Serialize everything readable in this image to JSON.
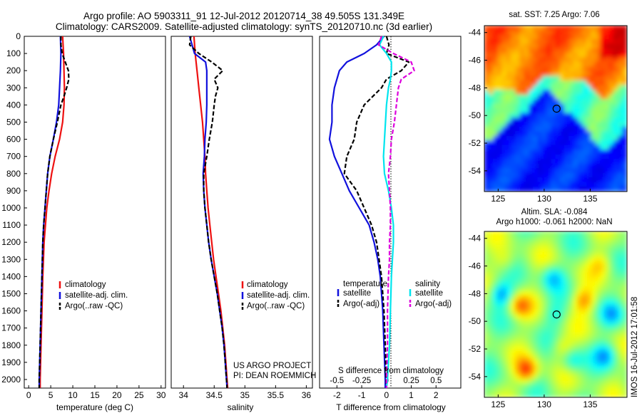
{
  "header": {
    "line1": "Argo profile: AO 5903311_91 12-Jul-2012 20120714_38 49.505S 131.349E",
    "line2": "Climatology: CARS2009. Satellite-adjusted climatology: synTS_20120710.nc (3d earlier)"
  },
  "depth_ticks": [
    0,
    100,
    200,
    300,
    400,
    500,
    600,
    700,
    800,
    900,
    1000,
    1100,
    1200,
    1300,
    1400,
    1500,
    1600,
    1700,
    1800,
    1900,
    2000
  ],
  "colors": {
    "climatology": "#ee1111",
    "satellite": "#1111dd",
    "argo": "#000000",
    "sal_sat": "#00e5ee",
    "sal_argo": "#dd00dd"
  },
  "panel_temp": {
    "xlabel": "temperature (deg C)",
    "xticks": [
      0,
      5,
      10,
      15,
      20,
      25,
      30
    ],
    "legend": [
      "climatology",
      "satellite-adj. clim.",
      "Argo(..raw -QC)"
    ]
  },
  "panel_sal": {
    "xlabel": "salinity",
    "xticks": [
      "34",
      "34.5",
      "35",
      "35.5",
      "36"
    ],
    "legend": [
      "climatology",
      "satellite-adj. clim.",
      "Argo(..raw -QC)"
    ],
    "credit1": "US ARGO PROJECT",
    "credit2": "PI: DEAN ROEMMICH"
  },
  "panel_diff": {
    "xlabel": "T difference from climatology",
    "xlabel_top": "S difference from climatology",
    "xticks": [
      "-2",
      "-1",
      "0",
      "1",
      "2"
    ],
    "xticks_top": [
      "-0.5",
      "-0.25",
      "0",
      "0.25",
      "0.5"
    ],
    "legend_t_title": "temperature",
    "legend_s_title": "salinity",
    "legend_t": [
      "satellite",
      "Argo(-adj)"
    ],
    "legend_s": [
      "satellite",
      "Argo(-adj)"
    ]
  },
  "map_sst": {
    "title": "sat. SST: 7.25 Argo: 7.06",
    "yticks": [
      "-44",
      "-46",
      "-48",
      "-50",
      "-52",
      "-54"
    ],
    "xticks": [
      "125",
      "130",
      "135"
    ]
  },
  "map_sla": {
    "title1": "Altim. SLA: -0.084",
    "title2": "Argo h1000: -0.061 h2000: NaN",
    "yticks": [
      "-44",
      "-46",
      "-48",
      "-50",
      "-52",
      "-54"
    ],
    "xticks": [
      "125",
      "130",
      "135"
    ]
  },
  "stamp": "IMOS 16-Jul-2012 17:01:58",
  "chart_data": [
    {
      "type": "line",
      "xlabel": "temperature (deg C)",
      "ylabel": "",
      "xlim": [
        -1,
        31
      ],
      "ylim": [
        2050,
        0
      ],
      "series": [
        {
          "name": "climatology",
          "color": "#ee1111",
          "depth": [
            0,
            100,
            200,
            300,
            400,
            500,
            600,
            700,
            800,
            900,
            1000,
            1100,
            1200,
            1400,
            1600,
            1800,
            2000,
            2050
          ],
          "values": [
            7.7,
            7.9,
            8.0,
            8.1,
            8.0,
            7.7,
            7.0,
            6.0,
            5.2,
            4.6,
            4.1,
            3.8,
            3.5,
            3.2,
            3.0,
            2.8,
            2.6,
            2.6
          ]
        },
        {
          "name": "satellite-adj. clim.",
          "color": "#1111dd",
          "depth": [
            0,
            100,
            200,
            300,
            400,
            500,
            600,
            700,
            800,
            900,
            1000,
            1100,
            1200,
            1400,
            1600,
            1800,
            2000,
            2050
          ],
          "values": [
            7.2,
            7.3,
            7.2,
            7.0,
            6.8,
            6.3,
            5.6,
            4.8,
            4.3,
            4.0,
            3.7,
            3.4,
            3.2,
            3.0,
            2.8,
            2.6,
            2.4,
            2.4
          ]
        },
        {
          "name": "Argo(..raw -QC)",
          "color": "#000000",
          "dash": true,
          "depth": [
            0,
            50,
            100,
            150,
            200,
            250,
            300,
            350,
            400,
            500,
            600,
            700,
            800,
            900,
            1000,
            1100,
            1200,
            1400,
            1600,
            1800,
            2000,
            2050
          ],
          "values": [
            7.3,
            7.3,
            7.6,
            8.3,
            9.0,
            9.1,
            8.6,
            8.0,
            7.3,
            6.5,
            5.6,
            4.8,
            4.3,
            4.0,
            3.7,
            3.4,
            3.2,
            3.0,
            2.8,
            2.6,
            2.4,
            2.4
          ]
        }
      ]
    },
    {
      "type": "line",
      "xlabel": "salinity",
      "ylabel": "",
      "xlim": [
        33.8,
        36.1
      ],
      "ylim": [
        2050,
        0
      ],
      "series": [
        {
          "name": "climatology",
          "color": "#ee1111",
          "depth": [
            0,
            100,
            200,
            300,
            400,
            500,
            600,
            700,
            800,
            900,
            1000,
            1100,
            1200,
            1300,
            1400,
            1500,
            1600,
            1700,
            1800,
            1900,
            2000,
            2050
          ],
          "values": [
            34.17,
            34.19,
            34.22,
            34.25,
            34.28,
            34.31,
            34.33,
            34.35,
            34.36,
            34.38,
            34.4,
            34.43,
            34.46,
            34.49,
            34.53,
            34.57,
            34.61,
            34.64,
            34.67,
            34.69,
            34.71,
            34.72
          ]
        },
        {
          "name": "satellite-adj. clim.",
          "color": "#1111dd",
          "depth": [
            0,
            100,
            150,
            200,
            300,
            400,
            500,
            600,
            700,
            800,
            900,
            1000,
            1100,
            1200,
            1300,
            1400,
            1500,
            1600,
            1700,
            1800,
            1900,
            2000,
            2050
          ],
          "values": [
            34.1,
            34.18,
            34.36,
            34.38,
            34.38,
            34.38,
            34.37,
            34.35,
            34.34,
            34.32,
            34.33,
            34.35,
            34.38,
            34.41,
            34.45,
            34.5,
            34.55,
            34.59,
            34.63,
            34.66,
            34.68,
            34.7,
            34.71
          ]
        },
        {
          "name": "Argo(..raw -QC)",
          "color": "#000000",
          "dash": true,
          "depth": [
            0,
            50,
            100,
            150,
            200,
            250,
            300,
            350,
            400,
            500,
            600,
            700,
            800,
            900,
            1000,
            1100,
            1200,
            1300,
            1400,
            1500,
            1600,
            1700,
            1800,
            1900,
            2000,
            2050
          ],
          "values": [
            34.12,
            34.1,
            34.25,
            34.46,
            34.64,
            34.5,
            34.56,
            34.52,
            34.5,
            34.47,
            34.42,
            34.38,
            34.33,
            34.33,
            34.35,
            34.38,
            34.41,
            34.45,
            34.5,
            34.55,
            34.59,
            34.63,
            34.66,
            34.68,
            34.7,
            34.71
          ]
        }
      ]
    },
    {
      "type": "line",
      "xlabel": "T difference from climatology",
      "ylabel": "",
      "xlim": [
        -2.7,
        3
      ],
      "ylim": [
        2050,
        0
      ],
      "series": [
        {
          "name": "temperature satellite",
          "color": "#1111dd",
          "depth": [
            0,
            50,
            100,
            150,
            200,
            250,
            300,
            400,
            500,
            600,
            700,
            800,
            900,
            1000,
            1100,
            1200,
            1300,
            1400,
            1600,
            1800,
            2000,
            2050
          ],
          "values": [
            -0.1,
            -0.4,
            -0.9,
            -1.6,
            -1.9,
            -2.0,
            -2.1,
            -2.2,
            -2.2,
            -2.3,
            -2.1,
            -1.8,
            -1.5,
            -1.1,
            -0.7,
            -0.5,
            -0.35,
            -0.25,
            -0.15,
            -0.1,
            -0.05,
            -0.05
          ]
        },
        {
          "name": "temperature Argo(-adj)",
          "color": "#000000",
          "dash": true,
          "depth": [
            0,
            50,
            100,
            150,
            200,
            250,
            300,
            400,
            500,
            600,
            700,
            800,
            900,
            1000,
            1100,
            1200,
            1300,
            1400,
            1600,
            1800,
            2000,
            2050
          ],
          "values": [
            0.0,
            0.1,
            0.0,
            0.9,
            0.6,
            0.0,
            -0.2,
            -0.9,
            -1.2,
            -1.3,
            -1.6,
            -1.7,
            -1.2,
            -0.9,
            -0.6,
            -0.4,
            -0.3,
            -0.2,
            -0.1,
            -0.05,
            -0.02,
            0.0
          ]
        },
        {
          "name": "salinity satellite",
          "color": "#00e5ee",
          "depth": [
            0,
            50,
            100,
            150,
            200,
            250,
            300,
            400,
            500,
            600,
            700,
            800,
            900,
            1000,
            1100,
            1200,
            1300,
            1400,
            1600,
            1800,
            2000,
            2050
          ],
          "values": [
            -0.03,
            -0.07,
            0.0,
            0.05,
            0.05,
            0.04,
            0.02,
            0.0,
            -0.01,
            -0.02,
            -0.03,
            -0.02,
            0.02,
            0.05,
            0.07,
            0.07,
            0.06,
            0.05,
            0.04,
            0.03,
            0.01,
            0.0
          ]
        },
        {
          "name": "salinity Argo(-adj)",
          "color": "#dd00dd",
          "dash": true,
          "depth": [
            0,
            50,
            100,
            150,
            200,
            250,
            300,
            400,
            500,
            600,
            700,
            800,
            900,
            1000,
            1100,
            1200,
            1300,
            1400,
            1600,
            1800,
            2000,
            2050
          ],
          "values": [
            -0.05,
            -0.08,
            0.07,
            0.25,
            0.28,
            0.15,
            0.12,
            0.1,
            0.08,
            0.05,
            0.04,
            0.02,
            0.03,
            0.04,
            0.04,
            0.03,
            0.03,
            0.02,
            0.01,
            0.01,
            0.0,
            0.0
          ]
        }
      ]
    },
    {
      "type": "heatmap",
      "title": "sat. SST: 7.25 Argo: 7.06",
      "xlim": [
        123.5,
        139
      ],
      "ylim": [
        -55.5,
        -43.5
      ],
      "xticks": [
        125,
        130,
        135
      ],
      "yticks": [
        -44,
        -46,
        -48,
        -50,
        -52,
        -54
      ],
      "marker": {
        "lon": 131.349,
        "lat": -49.505
      }
    },
    {
      "type": "heatmap",
      "title": "Altim. SLA: -0.084",
      "xlim": [
        123.5,
        139
      ],
      "ylim": [
        -55.5,
        -43.5
      ],
      "xticks": [
        125,
        130,
        135
      ],
      "yticks": [
        -44,
        -46,
        -48,
        -50,
        -52,
        -54
      ],
      "marker": {
        "lon": 131.349,
        "lat": -49.505
      }
    }
  ]
}
